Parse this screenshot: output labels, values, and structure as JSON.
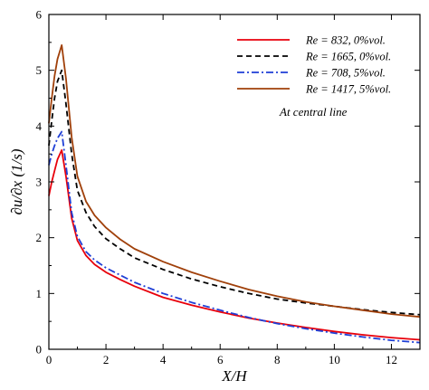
{
  "chart_data": {
    "type": "line",
    "xlabel": "X/H",
    "ylabel": "∂u/∂x (1/s)",
    "xlim": [
      0,
      13
    ],
    "ylim": [
      0,
      6
    ],
    "xticks": [
      0,
      2,
      4,
      6,
      8,
      10,
      12
    ],
    "yticks": [
      0,
      1,
      2,
      3,
      4,
      5,
      6
    ],
    "legend_position": "top-right",
    "annotation": "At central line",
    "grid": false,
    "series": [
      {
        "name": "Re = 832, 0%vol.",
        "color": "#e8000b",
        "dash": "solid",
        "points": [
          [
            0,
            2.75
          ],
          [
            0.1,
            3.0
          ],
          [
            0.2,
            3.2
          ],
          [
            0.3,
            3.4
          ],
          [
            0.45,
            3.57
          ],
          [
            0.6,
            3.1
          ],
          [
            0.8,
            2.35
          ],
          [
            1.0,
            1.95
          ],
          [
            1.3,
            1.68
          ],
          [
            1.6,
            1.52
          ],
          [
            2.0,
            1.38
          ],
          [
            2.5,
            1.25
          ],
          [
            3.0,
            1.13
          ],
          [
            4.0,
            0.93
          ],
          [
            5.0,
            0.79
          ],
          [
            6.0,
            0.67
          ],
          [
            7.0,
            0.56
          ],
          [
            8.0,
            0.47
          ],
          [
            9.0,
            0.39
          ],
          [
            10.0,
            0.32
          ],
          [
            11.0,
            0.26
          ],
          [
            12.0,
            0.21
          ],
          [
            13.0,
            0.17
          ]
        ]
      },
      {
        "name": "Re = 1665, 0%vol.",
        "color": "#000000",
        "dash": "dashed",
        "points": [
          [
            0,
            3.65
          ],
          [
            0.1,
            4.1
          ],
          [
            0.2,
            4.5
          ],
          [
            0.3,
            4.8
          ],
          [
            0.45,
            5.0
          ],
          [
            0.6,
            4.4
          ],
          [
            0.8,
            3.5
          ],
          [
            1.0,
            2.85
          ],
          [
            1.3,
            2.45
          ],
          [
            1.6,
            2.2
          ],
          [
            2.0,
            1.98
          ],
          [
            2.5,
            1.8
          ],
          [
            3.0,
            1.64
          ],
          [
            4.0,
            1.43
          ],
          [
            5.0,
            1.26
          ],
          [
            6.0,
            1.12
          ],
          [
            7.0,
            1.0
          ],
          [
            8.0,
            0.9
          ],
          [
            9.0,
            0.83
          ],
          [
            10.0,
            0.77
          ],
          [
            11.0,
            0.71
          ],
          [
            12.0,
            0.66
          ],
          [
            13.0,
            0.62
          ]
        ]
      },
      {
        "name": "Re = 708, 5%vol.",
        "color": "#1f3fd6",
        "dash": "dashdot",
        "points": [
          [
            0,
            3.3
          ],
          [
            0.1,
            3.5
          ],
          [
            0.2,
            3.65
          ],
          [
            0.3,
            3.78
          ],
          [
            0.45,
            3.9
          ],
          [
            0.6,
            3.3
          ],
          [
            0.8,
            2.45
          ],
          [
            1.0,
            2.02
          ],
          [
            1.3,
            1.75
          ],
          [
            1.6,
            1.6
          ],
          [
            2.0,
            1.46
          ],
          [
            2.5,
            1.33
          ],
          [
            3.0,
            1.2
          ],
          [
            4.0,
            1.0
          ],
          [
            5.0,
            0.84
          ],
          [
            6.0,
            0.7
          ],
          [
            7.0,
            0.57
          ],
          [
            8.0,
            0.46
          ],
          [
            9.0,
            0.37
          ],
          [
            10.0,
            0.29
          ],
          [
            11.0,
            0.22
          ],
          [
            12.0,
            0.16
          ],
          [
            13.0,
            0.12
          ]
        ]
      },
      {
        "name": "Re = 1417, 5%vol.",
        "color": "#a0400a",
        "dash": "solid",
        "points": [
          [
            0,
            4.05
          ],
          [
            0.1,
            4.5
          ],
          [
            0.2,
            4.9
          ],
          [
            0.3,
            5.2
          ],
          [
            0.45,
            5.45
          ],
          [
            0.6,
            4.85
          ],
          [
            0.8,
            3.8
          ],
          [
            1.0,
            3.1
          ],
          [
            1.3,
            2.65
          ],
          [
            1.6,
            2.4
          ],
          [
            2.0,
            2.18
          ],
          [
            2.5,
            1.97
          ],
          [
            3.0,
            1.8
          ],
          [
            4.0,
            1.57
          ],
          [
            5.0,
            1.38
          ],
          [
            6.0,
            1.22
          ],
          [
            7.0,
            1.07
          ],
          [
            8.0,
            0.95
          ],
          [
            9.0,
            0.85
          ],
          [
            10.0,
            0.77
          ],
          [
            11.0,
            0.7
          ],
          [
            12.0,
            0.63
          ],
          [
            13.0,
            0.58
          ]
        ]
      }
    ]
  }
}
